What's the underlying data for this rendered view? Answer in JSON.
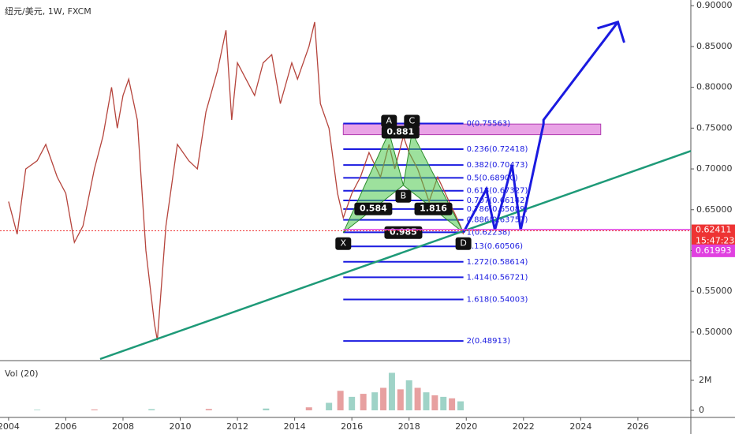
{
  "chart_data": {
    "type": "line",
    "title": "纽元/美元, 1W, FXCM",
    "xlim": [
      2003.7,
      2027.85
    ],
    "xticks": [
      2004,
      2006,
      2008,
      2010,
      2012,
      2014,
      2016,
      2018,
      2020,
      2022,
      2024,
      2026
    ],
    "ylim": [
      0.467,
      0.907
    ],
    "yticks": [
      {
        "value": 0.5,
        "label": "0.50000"
      },
      {
        "value": 0.55,
        "label": "0.55000"
      },
      {
        "value": 0.6,
        "label": "0.60000"
      },
      {
        "value": 0.65,
        "label": "0.65000"
      },
      {
        "value": 0.7,
        "label": "0.70000"
      },
      {
        "value": 0.75,
        "label": "0.75000"
      },
      {
        "value": 0.8,
        "label": "0.80000"
      },
      {
        "value": 0.85,
        "label": "0.85000"
      },
      {
        "value": 0.9,
        "label": "0.90000"
      }
    ],
    "series": [
      {
        "name": "price",
        "color": "#b5443c",
        "x": [
          2004.0,
          2004.3,
          2004.6,
          2005.0,
          2005.3,
          2005.7,
          2006.0,
          2006.3,
          2006.6,
          2007.0,
          2007.3,
          2007.6,
          2007.8,
          2008.0,
          2008.2,
          2008.5,
          2008.8,
          2009.1,
          2009.2,
          2009.5,
          2009.9,
          2010.3,
          2010.6,
          2010.9,
          2011.3,
          2011.6,
          2011.8,
          2012.0,
          2012.3,
          2012.6,
          2012.9,
          2013.2,
          2013.5,
          2013.9,
          2014.1,
          2014.5,
          2014.7,
          2014.9,
          2015.2,
          2015.5,
          2015.7,
          2016.0,
          2016.3,
          2016.6,
          2017.0,
          2017.3,
          2017.5,
          2017.8,
          2018.0,
          2018.3,
          2018.7,
          2019.0,
          2019.4,
          2019.8,
          2019.9
        ],
        "values": [
          0.66,
          0.62,
          0.7,
          0.71,
          0.73,
          0.69,
          0.67,
          0.61,
          0.63,
          0.7,
          0.74,
          0.8,
          0.75,
          0.79,
          0.81,
          0.76,
          0.6,
          0.51,
          0.49,
          0.63,
          0.73,
          0.71,
          0.7,
          0.77,
          0.82,
          0.87,
          0.76,
          0.83,
          0.81,
          0.79,
          0.83,
          0.84,
          0.78,
          0.83,
          0.81,
          0.85,
          0.88,
          0.78,
          0.75,
          0.67,
          0.64,
          0.67,
          0.69,
          0.72,
          0.69,
          0.73,
          0.7,
          0.74,
          0.72,
          0.7,
          0.66,
          0.69,
          0.66,
          0.63,
          0.62
        ]
      }
    ],
    "last_price": 0.62411,
    "time_label": "15:47:23",
    "ref_price": 0.61993,
    "fib_start": 2015.7,
    "fib_levels": [
      {
        "label": "0(0.75563)",
        "price": 0.75563
      },
      {
        "label": "0.236(0.72418)",
        "price": 0.72418
      },
      {
        "label": "0.382(0.70473)",
        "price": 0.70473
      },
      {
        "label": "0.5(0.68900)",
        "price": 0.689
      },
      {
        "label": "0.618(0.67327)",
        "price": 0.67327
      },
      {
        "label": "0.707(0.66142)",
        "price": 0.66142
      },
      {
        "label": "0.786(0.65089)",
        "price": 0.65089
      },
      {
        "label": "0.886(0.63757)",
        "price": 0.63757
      },
      {
        "label": "1(0.62238)",
        "price": 0.62238
      },
      {
        "label": "1.13(0.60506)",
        "price": 0.60506
      },
      {
        "label": "1.272(0.58614)",
        "price": 0.58614
      },
      {
        "label": "1.414(0.56721)",
        "price": 0.56721
      },
      {
        "label": "1.618(0.54003)",
        "price": 0.54003
      },
      {
        "label": "2(0.48913)",
        "price": 0.48913
      }
    ],
    "fib_end": 2019.9,
    "pattern": {
      "labels": [
        "X",
        "A",
        "B",
        "C",
        "D"
      ],
      "x": [
        2015.7,
        2017.3,
        2017.8,
        2018.1,
        2019.9
      ],
      "y": [
        0.622,
        0.745,
        0.68,
        0.745,
        0.622
      ],
      "ratios": [
        "0.584",
        "1.816",
        "0.985",
        "0.881"
      ]
    },
    "zone": {
      "x": [
        2015.7,
        2024.7
      ],
      "y": [
        0.742,
        0.755
      ]
    },
    "trendline": {
      "x": [
        2007.2,
        2027.85
      ],
      "y": [
        0.467,
        0.722
      ]
    },
    "projection": {
      "x": [
        2019.9,
        2020.7,
        2021.0,
        2021.6,
        2021.9,
        2022.7,
        2022.7,
        2025.3
      ],
      "y": [
        0.622,
        0.675,
        0.625,
        0.705,
        0.625,
        0.755,
        0.76,
        0.88
      ]
    },
    "volume": {
      "title": "Vol (20)",
      "ylim": [
        0,
        3050000
      ],
      "yticks": [
        {
          "value": 0,
          "label": "0"
        },
        {
          "value": 2000000,
          "label": "2M"
        }
      ],
      "x": [
        2005,
        2007,
        2009,
        2011,
        2013,
        2014.5,
        2015.2,
        2015.6,
        2016.0,
        2016.4,
        2016.8,
        2017.1,
        2017.4,
        2017.7,
        2018.0,
        2018.3,
        2018.6,
        2018.9,
        2019.2,
        2019.5,
        2019.8
      ],
      "values": [
        40000,
        60000,
        80000,
        90000,
        120000,
        200000,
        500000,
        1300000,
        900000,
        1100000,
        1200000,
        1500000,
        2500000,
        1400000,
        2000000,
        1500000,
        1200000,
        1000000,
        900000,
        800000,
        600000
      ]
    }
  }
}
